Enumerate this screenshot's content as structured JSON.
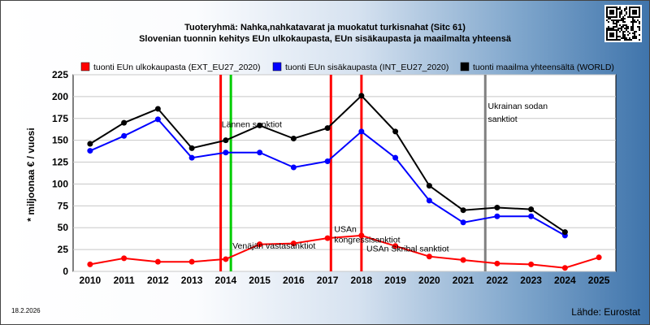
{
  "title_line1": "Tuoteryhmä: Nahka,nahkatavarat ja muokatut turkisnahat (Sitc 61)",
  "title_line2": "Slovenian tuonnin kehitys EUn ulkokaupasta, EUn sisäkaupasta ja maailmalta yhteensä",
  "date": "18.2.2026",
  "source": "Lähde: Eurostat",
  "qr_icon": "qr-code-icon",
  "chart_data": {
    "type": "line",
    "x": [
      2010,
      2011,
      2012,
      2013,
      2014,
      2015,
      2016,
      2017,
      2018,
      2019,
      2020,
      2021,
      2022,
      2023,
      2024,
      2025
    ],
    "xlim": [
      2009.5,
      2025.5
    ],
    "ylim": [
      0,
      225
    ],
    "yticks": [
      0,
      25,
      50,
      75,
      100,
      125,
      150,
      175,
      200,
      225
    ],
    "ylabel": "* miljoonaa € / vuosi",
    "grid": true,
    "legend_position": "top",
    "series": [
      {
        "name": "tuonti EUn ulkokaupasta (EXT_EU27_2020)",
        "color": "#ff0000",
        "values": [
          8,
          15,
          11,
          11,
          14,
          31,
          32,
          38,
          41,
          29,
          17,
          13,
          9,
          8,
          4,
          16
        ]
      },
      {
        "name": "tuonti EUn sisäkaupasta (INT_EU27_2020)",
        "color": "#0000ff",
        "values": [
          138,
          155,
          174,
          130,
          136,
          136,
          119,
          126,
          160,
          130,
          81,
          56,
          63,
          63,
          41,
          null
        ]
      },
      {
        "name": "tuonti maailma yhteensältä (WORLD)",
        "color": "#000000",
        "values": [
          146,
          170,
          186,
          141,
          150,
          167,
          152,
          164,
          201,
          160,
          98,
          70,
          73,
          71,
          45,
          null
        ]
      }
    ],
    "events": [
      {
        "x": 2013.85,
        "color": "#ff0000",
        "label": "",
        "label_x": 2013.85,
        "label_y": 0
      },
      {
        "x": 2014.15,
        "color": "#00cc00",
        "label": "Lännen sanktiot",
        "label_x": 2013.83,
        "label_y": 165
      },
      {
        "x": 2014.15,
        "color": "",
        "label": "Venäjän vastasanktiot",
        "label_x": 2014.15,
        "label_y": 26
      },
      {
        "x": 2017.1,
        "color": "#ff0000",
        "label": "USAn",
        "label_x": 2017.15,
        "label_y": 45
      },
      {
        "x": 2017.1,
        "color": "",
        "label": "kongressisanktiot",
        "label_x": 2017.15,
        "label_y": 33
      },
      {
        "x": 2018.0,
        "color": "#ff0000",
        "label": "USAn Skribal sanktiot",
        "label_x": 2018.1,
        "label_y": 23
      },
      {
        "x": 2021.65,
        "color": "#808080",
        "label": "Ukrainan sodan",
        "label_x": 2021.68,
        "label_y": 186
      },
      {
        "x": 2021.65,
        "color": "",
        "label": "sanktiot",
        "label_x": 2021.68,
        "label_y": 171
      }
    ]
  }
}
